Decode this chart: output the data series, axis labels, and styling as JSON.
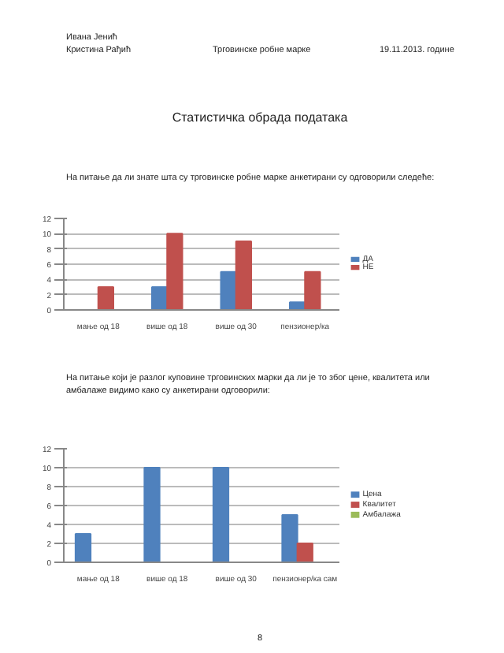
{
  "chart_data": [
    {
      "type": "bar",
      "title": "Статистичка обрада података",
      "annotations": [
        "Ивана Јенић",
        "Кристина Рађић",
        "Трговинске робне марке",
        "19.11.2013. године",
        "На питање да ли знате шта су трговинске робне марке анкетирани су одговорили следеће:"
      ],
      "categories": [
        "мање од 18",
        "више од 18",
        "више од 30",
        "пензионер/ка"
      ],
      "series": [
        {
          "name": "ДА",
          "color": "#4f81bd",
          "values": [
            0,
            3,
            5,
            1
          ]
        },
        {
          "name": "НЕ",
          "color": "#c0504d",
          "values": [
            3,
            10,
            9,
            5
          ]
        }
      ],
      "ylim": [
        0,
        12
      ],
      "yticks": [
        0,
        2,
        4,
        6,
        8,
        10,
        12
      ],
      "grid": "y",
      "legend": "right"
    },
    {
      "type": "bar",
      "annotations": [
        "На питање који је разлог куповине трговинских марки да ли је то због цене, квалитета или амбалаже видимо како су анкетирани одговорили:",
        "8"
      ],
      "categories": [
        "мање од 18",
        "више од 18",
        "више од 30",
        "пензионер/ка сам"
      ],
      "series": [
        {
          "name": "Цена",
          "color": "#4f81bd",
          "values": [
            3,
            10,
            10,
            5
          ]
        },
        {
          "name": "Квалитет",
          "color": "#c0504d",
          "values": [
            0,
            0,
            0,
            2
          ]
        },
        {
          "name": "Амбалажа",
          "color": "#9bbb59",
          "values": [
            0,
            0,
            0,
            0
          ]
        }
      ],
      "ylim": [
        0,
        12
      ],
      "yticks": [
        0,
        2,
        4,
        6,
        8,
        10,
        12
      ],
      "grid": "y",
      "legend": "right"
    }
  ]
}
